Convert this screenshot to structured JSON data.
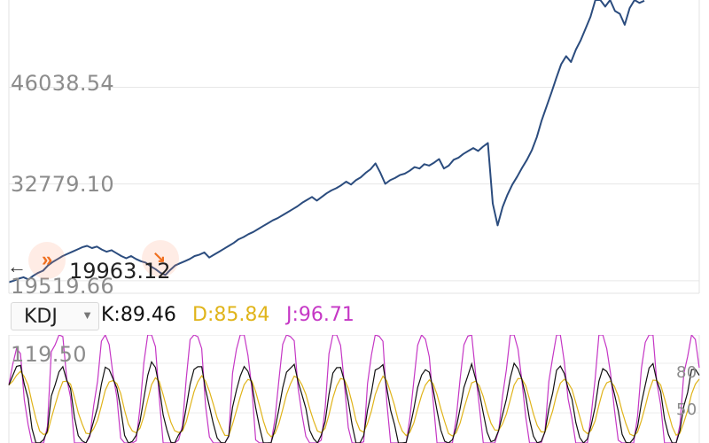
{
  "chart_data": [
    {
      "type": "line",
      "title": "",
      "xlabel": "",
      "ylabel": "",
      "y_tick_labels": [
        "46038.54",
        "32779.10",
        "19519.66"
      ],
      "y_tick_values": [
        46038.54,
        32779.1,
        19519.66
      ],
      "ylim": [
        17800,
        58000
      ],
      "grid": true,
      "series": [
        {
          "color": "#2b4c7e",
          "values": [
            19300,
            19520,
            19800,
            20000,
            19700,
            20200,
            20600,
            20900,
            21600,
            22100,
            22500,
            22900,
            23200,
            23500,
            23800,
            24100,
            24300,
            24000,
            24200,
            23800,
            23500,
            23700,
            23300,
            22900,
            22600,
            22900,
            22500,
            22200,
            22000,
            21500,
            21100,
            20600,
            20300,
            21000,
            21600,
            21900,
            22200,
            22500,
            22900,
            23100,
            23400,
            22700,
            23100,
            23500,
            23900,
            24300,
            24700,
            25200,
            25500,
            25900,
            26200,
            26600,
            27000,
            27400,
            27800,
            28100,
            28500,
            28900,
            29300,
            29700,
            30200,
            30600,
            31000,
            30500,
            31000,
            31500,
            31900,
            32200,
            32600,
            33100,
            32700,
            33300,
            33700,
            34300,
            34800,
            35600,
            34300,
            32800,
            33300,
            33600,
            34000,
            34200,
            34600,
            35100,
            34900,
            35500,
            35300,
            35700,
            36200,
            34900,
            35300,
            36100,
            36400,
            36900,
            37300,
            37700,
            37300,
            37900,
            38400,
            30100,
            27100,
            29600,
            31300,
            32700,
            33800,
            35000,
            36100,
            37400,
            39200,
            41500,
            43400,
            45300,
            47300,
            49200,
            50300,
            49500,
            51200,
            52500,
            54100,
            55700,
            58000,
            58500,
            57100,
            58200,
            56500,
            56100,
            54600,
            56900,
            58000,
            57600,
            57900
          ]
        }
      ]
    },
    {
      "type": "line",
      "title": "",
      "indicator": "KDJ",
      "y_tick_labels": [
        "119.50",
        "80",
        "50"
      ],
      "y_tick_values": [
        119.5,
        80,
        50
      ],
      "ylim": [
        25,
        128
      ],
      "series": [
        {
          "name": "K",
          "color": "#111111",
          "last": 89.46
        },
        {
          "name": "D",
          "color": "#e0b41a",
          "last": 85.84
        },
        {
          "name": "J",
          "color": "#c537c5",
          "last": 96.71
        }
      ]
    }
  ],
  "main": {
    "y_labels": [
      "46038.54",
      "32779.10",
      "19519.66"
    ],
    "min_marker_text": "19963.12"
  },
  "kdj": {
    "selector_label": "KDJ",
    "k_text": "K:89.46",
    "d_text": "D:85.84",
    "j_text": "J:96.71",
    "k_color": "#111111",
    "d_color": "#e0b41a",
    "j_color": "#c537c5",
    "top_label": "119.50",
    "right_labels": [
      "80",
      "50"
    ]
  },
  "icons": {
    "selector_caret": "▼",
    "left_arrow": "←",
    "left_marker": "»",
    "right_marker": "↘"
  }
}
